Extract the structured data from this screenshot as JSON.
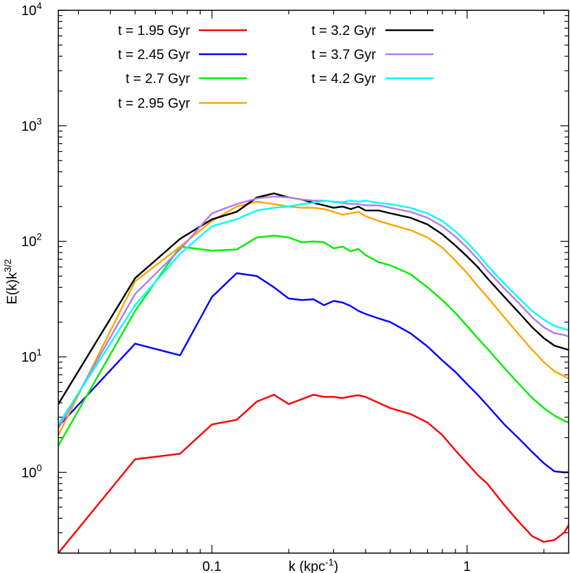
{
  "chart_data": {
    "type": "line",
    "title": "",
    "xlabel": "k (kpc",
    "xlabel_sup": "-1",
    "xlabel_end": ")",
    "ylabel": "E(k)k",
    "ylabel_sup": "3/2",
    "xscale": "log",
    "yscale": "log",
    "xlim": [
      0.025,
      2.5
    ],
    "ylim": [
      0.2,
      10000
    ],
    "grid": false,
    "legend_position": "top",
    "x_ticks": [
      {
        "value": 0.1,
        "label": "0.1"
      },
      {
        "value": 1,
        "label": "1"
      }
    ],
    "y_ticks": [
      {
        "value": 1,
        "base": "10",
        "exp": "0"
      },
      {
        "value": 10,
        "base": "10",
        "exp": "1"
      },
      {
        "value": 100,
        "base": "10",
        "exp": "2"
      },
      {
        "value": 1000,
        "base": "10",
        "exp": "3"
      },
      {
        "value": 10000,
        "base": "10",
        "exp": "4"
      }
    ],
    "series": [
      {
        "name": "t = 1.95 Gyr",
        "color": "#ff0000",
        "x": [
          0.025,
          0.05,
          0.075,
          0.1,
          0.125,
          0.15,
          0.175,
          0.2,
          0.225,
          0.25,
          0.275,
          0.3,
          0.325,
          0.35,
          0.375,
          0.4,
          0.45,
          0.5,
          0.6,
          0.7,
          0.8,
          0.9,
          1.0,
          1.1,
          1.2,
          1.4,
          1.6,
          1.8,
          2.0,
          2.2,
          2.4,
          2.5
        ],
        "values": [
          0.2,
          1.3,
          1.45,
          2.6,
          2.85,
          4.1,
          4.7,
          3.9,
          4.3,
          4.7,
          4.5,
          4.5,
          4.4,
          4.55,
          4.65,
          4.5,
          4.0,
          3.6,
          3.2,
          2.7,
          2.1,
          1.55,
          1.2,
          0.95,
          0.8,
          0.52,
          0.37,
          0.28,
          0.25,
          0.26,
          0.3,
          0.35
        ]
      },
      {
        "name": "t = 2.45 Gyr",
        "color": "#0000ff",
        "x": [
          0.025,
          0.05,
          0.075,
          0.1,
          0.125,
          0.15,
          0.175,
          0.2,
          0.225,
          0.25,
          0.275,
          0.3,
          0.325,
          0.35,
          0.375,
          0.4,
          0.45,
          0.5,
          0.6,
          0.7,
          0.8,
          0.9,
          1.0,
          1.1,
          1.2,
          1.4,
          1.6,
          1.8,
          2.0,
          2.2,
          2.4,
          2.5
        ],
        "values": [
          2.5,
          13,
          10.3,
          33,
          53,
          50,
          40,
          32,
          31,
          31.5,
          28,
          30.5,
          29.5,
          27.5,
          25,
          23.5,
          21.5,
          20,
          16,
          12.3,
          9.3,
          7.4,
          5.8,
          4.7,
          3.8,
          2.6,
          1.95,
          1.5,
          1.2,
          1.02,
          1.0,
          1.0
        ]
      },
      {
        "name": "t = 2.7 Gyr",
        "color": "#00ee00",
        "x": [
          0.025,
          0.05,
          0.075,
          0.1,
          0.125,
          0.15,
          0.175,
          0.2,
          0.225,
          0.25,
          0.275,
          0.3,
          0.325,
          0.35,
          0.375,
          0.4,
          0.45,
          0.5,
          0.6,
          0.7,
          0.8,
          0.9,
          1.0,
          1.1,
          1.2,
          1.4,
          1.6,
          1.8,
          2.0,
          2.2,
          2.4,
          2.5
        ],
        "values": [
          1.7,
          25,
          90,
          83,
          85,
          108,
          112,
          108,
          98,
          100,
          98,
          87,
          90,
          82,
          86,
          76,
          66,
          62,
          52,
          40,
          31,
          24,
          18.5,
          14.5,
          11.8,
          8.0,
          5.8,
          4.4,
          3.6,
          3.1,
          2.8,
          2.7
        ]
      },
      {
        "name": "t = 2.95 Gyr",
        "color": "#ffa500",
        "x": [
          0.025,
          0.05,
          0.075,
          0.1,
          0.125,
          0.15,
          0.175,
          0.2,
          0.225,
          0.25,
          0.275,
          0.3,
          0.325,
          0.35,
          0.375,
          0.4,
          0.45,
          0.5,
          0.6,
          0.7,
          0.8,
          0.9,
          1.0,
          1.1,
          1.2,
          1.4,
          1.6,
          1.8,
          2.0,
          2.2,
          2.4,
          2.5
        ],
        "values": [
          2.1,
          45,
          90,
          150,
          200,
          220,
          210,
          200,
          195,
          195,
          190,
          180,
          170,
          175,
          180,
          165,
          150,
          140,
          125,
          108,
          88,
          68,
          53,
          41,
          33,
          22,
          15.5,
          11.5,
          9.0,
          7.5,
          6.8,
          6.5
        ]
      },
      {
        "name": "t = 3.2 Gyr",
        "color": "#000000",
        "x": [
          0.025,
          0.05,
          0.075,
          0.1,
          0.125,
          0.15,
          0.175,
          0.2,
          0.225,
          0.25,
          0.275,
          0.3,
          0.325,
          0.35,
          0.375,
          0.4,
          0.45,
          0.5,
          0.6,
          0.7,
          0.8,
          0.9,
          1.0,
          1.1,
          1.2,
          1.4,
          1.6,
          1.8,
          2.0,
          2.2,
          2.4,
          2.5
        ],
        "values": [
          3.9,
          48,
          105,
          155,
          180,
          240,
          260,
          240,
          230,
          215,
          205,
          195,
          200,
          190,
          200,
          185,
          185,
          175,
          160,
          140,
          115,
          92,
          74,
          60,
          48,
          33,
          24,
          18,
          14.5,
          12.5,
          11.8,
          11.5
        ]
      },
      {
        "name": "t = 3.7 Gyr",
        "color": "#b57bee",
        "x": [
          0.025,
          0.05,
          0.075,
          0.1,
          0.125,
          0.15,
          0.175,
          0.2,
          0.225,
          0.25,
          0.275,
          0.3,
          0.325,
          0.35,
          0.375,
          0.4,
          0.45,
          0.5,
          0.6,
          0.7,
          0.8,
          0.9,
          1.0,
          1.1,
          1.2,
          1.4,
          1.6,
          1.8,
          2.0,
          2.2,
          2.4,
          2.5
        ],
        "values": [
          2.4,
          35,
          85,
          175,
          210,
          235,
          245,
          240,
          230,
          225,
          225,
          220,
          215,
          210,
          210,
          205,
          205,
          195,
          180,
          160,
          135,
          110,
          88,
          70,
          56,
          39,
          29,
          22,
          18,
          16,
          15.5,
          15
        ]
      },
      {
        "name": "t = 4.2 Gyr",
        "color": "#00ffff",
        "x": [
          0.025,
          0.05,
          0.075,
          0.1,
          0.125,
          0.15,
          0.175,
          0.2,
          0.225,
          0.25,
          0.275,
          0.3,
          0.325,
          0.35,
          0.375,
          0.4,
          0.45,
          0.5,
          0.6,
          0.7,
          0.8,
          0.9,
          1.0,
          1.1,
          1.2,
          1.4,
          1.6,
          1.8,
          2.0,
          2.2,
          2.4,
          2.5
        ],
        "values": [
          2.6,
          28,
          78,
          135,
          155,
          185,
          195,
          200,
          210,
          215,
          225,
          220,
          218,
          225,
          220,
          225,
          215,
          210,
          195,
          175,
          150,
          122,
          98,
          78,
          62,
          43,
          32,
          25,
          21,
          18.5,
          17.5,
          17
        ]
      }
    ]
  }
}
